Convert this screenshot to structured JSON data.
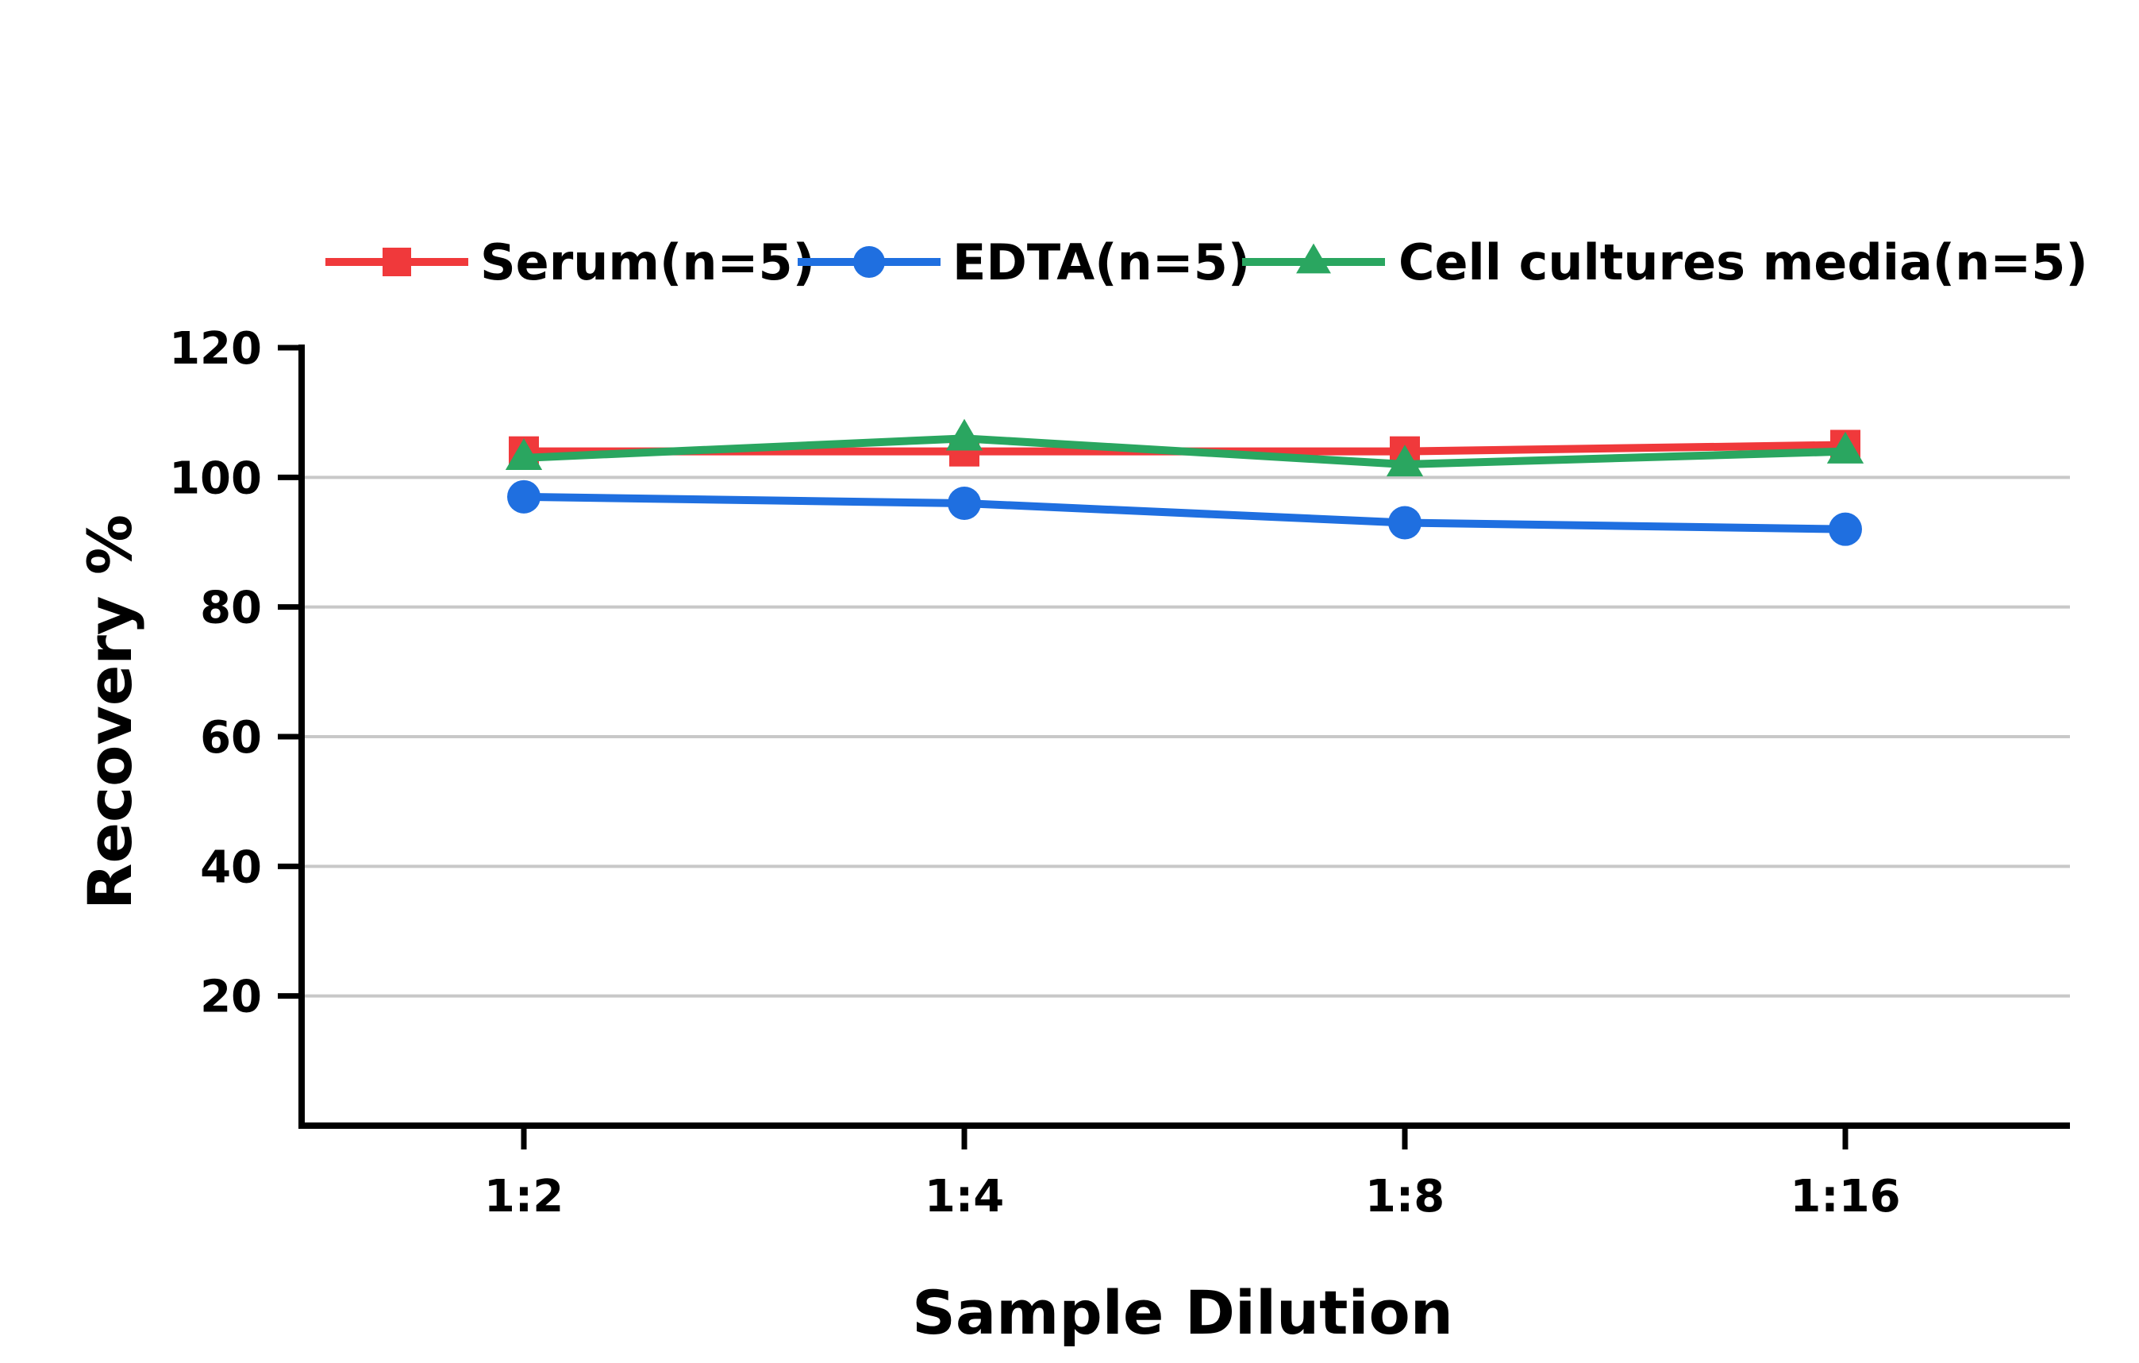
{
  "chart_data": {
    "type": "line",
    "title": "",
    "xlabel": "Sample Dilution",
    "ylabel": "Recovery %",
    "categories": [
      "1:2",
      "1:4",
      "1:8",
      "1:16"
    ],
    "ylim": [
      0,
      120
    ],
    "yticks": [
      20,
      40,
      60,
      80,
      100,
      120
    ],
    "grid": "horizontal",
    "legend_position": "top",
    "series": [
      {
        "name": "Serum(n=5)",
        "values": [
          104,
          104,
          104,
          105
        ],
        "color": "#f0393b",
        "marker": "square"
      },
      {
        "name": "EDTA(n=5)",
        "values": [
          97,
          96,
          93,
          92
        ],
        "color": "#1f6fe0",
        "marker": "circle"
      },
      {
        "name": "Cell cultures media(n=5)",
        "values": [
          103,
          106,
          102,
          104
        ],
        "color": "#2aa660",
        "marker": "triangle"
      }
    ]
  }
}
